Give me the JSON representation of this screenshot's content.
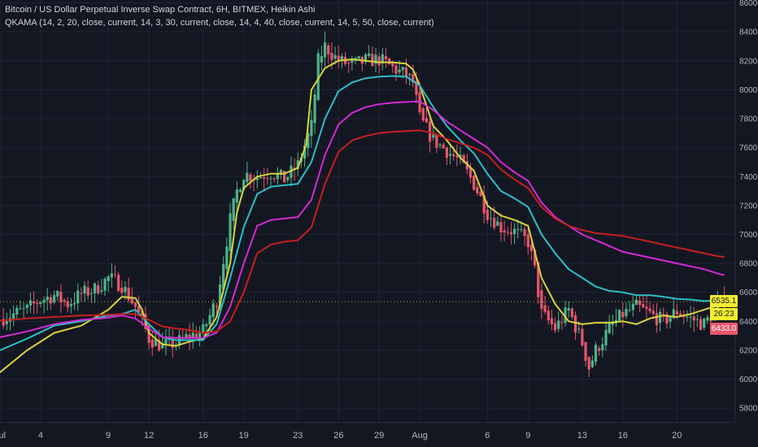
{
  "header": {
    "title": "Bitcoin / US Dollar Perpetual Inverse Swap Contract, 6H, BITMEX, Heikin Ashi",
    "indicator": "QKAMA (14, 2, 20, close, current, 14, 3, 30, current, close, 14, 4, 40, close, current, 14, 5, 50, close, current)"
  },
  "price_tags": {
    "last_price": "6535.1",
    "countdown": "26:23",
    "lowest_marker": "6433.0"
  },
  "colors": {
    "background": "#131722",
    "grid": "#1f2433",
    "axis_text": "#b2b5be",
    "candle_up": "#4fb38a",
    "candle_down": "#e8556b",
    "kama_yellow": "#d8d33a",
    "kama_cyan": "#2bbfc6",
    "kama_magenta": "#d42ad4",
    "kama_red": "#c61f1f",
    "tag_yellow": "#f5ee30",
    "tag_red": "#e8556b"
  },
  "chart_data": {
    "type": "candlestick",
    "y_axis_position": "right",
    "ylim": [
      5700,
      8620
    ],
    "ytick_labels": [
      "8600.0",
      "8400.0",
      "8200.0",
      "8000.0",
      "7800.0",
      "7600.0",
      "7400.0",
      "7200.0",
      "7000.0",
      "6800.0",
      "6600.0",
      "6400.0",
      "6200.0",
      "6000.0",
      "5800.0"
    ],
    "ytick_values": [
      8600,
      8400,
      8200,
      8000,
      7800,
      7600,
      7400,
      7200,
      7000,
      6800,
      6600,
      6400,
      6200,
      6000,
      5800
    ],
    "x_range_days": [
      0,
      54.3
    ],
    "xtick_labels": [
      "Jul",
      "4",
      "9",
      "12",
      "16",
      "19",
      "23",
      "26",
      "29",
      "Aug",
      "6",
      "9",
      "13",
      "16",
      "20"
    ],
    "xtick_days": [
      0,
      3,
      8,
      11,
      15,
      18,
      22,
      25,
      28,
      31,
      36,
      39,
      43,
      46,
      50
    ],
    "grid": true,
    "kama_series": [
      {
        "color_key": "kama_yellow",
        "values": [
          [
            -0.5,
            6010
          ],
          [
            2,
            6200
          ],
          [
            4,
            6320
          ],
          [
            6,
            6370
          ],
          [
            8,
            6480
          ],
          [
            9,
            6570
          ],
          [
            10,
            6560
          ],
          [
            10.5,
            6480
          ],
          [
            11,
            6320
          ],
          [
            12,
            6240
          ],
          [
            13,
            6230
          ],
          [
            14,
            6260
          ],
          [
            15,
            6280
          ],
          [
            16,
            6430
          ],
          [
            17,
            6800
          ],
          [
            17.5,
            7150
          ],
          [
            18,
            7320
          ],
          [
            19,
            7400
          ],
          [
            20,
            7420
          ],
          [
            21,
            7420
          ],
          [
            22,
            7460
          ],
          [
            22.6,
            7620
          ],
          [
            23,
            8000
          ],
          [
            24,
            8150
          ],
          [
            25,
            8200
          ],
          [
            26,
            8210
          ],
          [
            27,
            8200
          ],
          [
            28,
            8190
          ],
          [
            29,
            8190
          ],
          [
            30,
            8180
          ],
          [
            30.5,
            8140
          ],
          [
            31,
            8030
          ],
          [
            32,
            7750
          ],
          [
            33,
            7650
          ],
          [
            34,
            7530
          ],
          [
            35,
            7440
          ],
          [
            36,
            7200
          ],
          [
            37,
            7130
          ],
          [
            38,
            7100
          ],
          [
            39,
            7060
          ],
          [
            40,
            6700
          ],
          [
            41,
            6520
          ],
          [
            42,
            6400
          ],
          [
            43,
            6380
          ],
          [
            44,
            6390
          ],
          [
            45,
            6390
          ],
          [
            46,
            6400
          ],
          [
            47,
            6380
          ],
          [
            48,
            6420
          ],
          [
            49,
            6440
          ],
          [
            50,
            6430
          ],
          [
            51,
            6450
          ],
          [
            52,
            6480
          ],
          [
            53,
            6510
          ],
          [
            53.5,
            6530
          ]
        ]
      },
      {
        "color_key": "kama_cyan",
        "values": [
          [
            -0.5,
            6180
          ],
          [
            2,
            6280
          ],
          [
            4,
            6370
          ],
          [
            6,
            6400
          ],
          [
            8,
            6440
          ],
          [
            9,
            6450
          ],
          [
            10,
            6480
          ],
          [
            11,
            6380
          ],
          [
            12,
            6290
          ],
          [
            13,
            6270
          ],
          [
            14,
            6270
          ],
          [
            15,
            6270
          ],
          [
            16,
            6380
          ],
          [
            17,
            6700
          ],
          [
            18,
            7050
          ],
          [
            19,
            7280
          ],
          [
            20,
            7330
          ],
          [
            21,
            7340
          ],
          [
            22,
            7350
          ],
          [
            23,
            7500
          ],
          [
            24,
            7800
          ],
          [
            25,
            7990
          ],
          [
            26,
            8050
          ],
          [
            27,
            8080
          ],
          [
            28,
            8090
          ],
          [
            29,
            8095
          ],
          [
            30,
            8090
          ],
          [
            31,
            8030
          ],
          [
            32,
            7880
          ],
          [
            33,
            7750
          ],
          [
            34,
            7650
          ],
          [
            35,
            7560
          ],
          [
            36,
            7420
          ],
          [
            37,
            7300
          ],
          [
            38,
            7250
          ],
          [
            39,
            7190
          ],
          [
            40,
            7000
          ],
          [
            41,
            6870
          ],
          [
            42,
            6760
          ],
          [
            43,
            6700
          ],
          [
            44,
            6640
          ],
          [
            45,
            6610
          ],
          [
            46,
            6600
          ],
          [
            47,
            6580
          ],
          [
            48,
            6580
          ],
          [
            49,
            6570
          ],
          [
            50,
            6555
          ],
          [
            51,
            6550
          ],
          [
            52,
            6540
          ],
          [
            53,
            6545
          ],
          [
            53.5,
            6550
          ]
        ]
      },
      {
        "color_key": "kama_magenta",
        "values": [
          [
            -0.5,
            6280
          ],
          [
            2,
            6330
          ],
          [
            4,
            6380
          ],
          [
            6,
            6410
          ],
          [
            8,
            6425
          ],
          [
            9,
            6440
          ],
          [
            10,
            6420
          ],
          [
            11,
            6350
          ],
          [
            12,
            6290
          ],
          [
            13,
            6285
          ],
          [
            14,
            6285
          ],
          [
            15,
            6285
          ],
          [
            16,
            6320
          ],
          [
            17,
            6500
          ],
          [
            18,
            6800
          ],
          [
            19,
            7060
          ],
          [
            20,
            7100
          ],
          [
            21,
            7110
          ],
          [
            22,
            7120
          ],
          [
            23,
            7240
          ],
          [
            24,
            7550
          ],
          [
            25,
            7760
          ],
          [
            26,
            7840
          ],
          [
            27,
            7880
          ],
          [
            28,
            7900
          ],
          [
            29,
            7910
          ],
          [
            30,
            7915
          ],
          [
            31,
            7920
          ],
          [
            32,
            7860
          ],
          [
            33,
            7780
          ],
          [
            34,
            7720
          ],
          [
            35,
            7660
          ],
          [
            36,
            7600
          ],
          [
            37,
            7500
          ],
          [
            38,
            7430
          ],
          [
            39,
            7370
          ],
          [
            40,
            7220
          ],
          [
            41,
            7120
          ],
          [
            42,
            7060
          ],
          [
            43,
            7000
          ],
          [
            44,
            6960
          ],
          [
            45,
            6920
          ],
          [
            46,
            6880
          ],
          [
            47,
            6860
          ],
          [
            48,
            6840
          ],
          [
            49,
            6820
          ],
          [
            50,
            6800
          ],
          [
            51,
            6780
          ],
          [
            52,
            6760
          ],
          [
            53,
            6730
          ],
          [
            53.5,
            6720
          ]
        ]
      },
      {
        "color_key": "kama_red",
        "values": [
          [
            -0.5,
            6400
          ],
          [
            2,
            6420
          ],
          [
            4,
            6430
          ],
          [
            6,
            6440
          ],
          [
            8,
            6445
          ],
          [
            9,
            6450
          ],
          [
            10,
            6450
          ],
          [
            11,
            6410
          ],
          [
            12,
            6365
          ],
          [
            13,
            6350
          ],
          [
            14,
            6340
          ],
          [
            15,
            6320
          ],
          [
            16,
            6330
          ],
          [
            17,
            6400
          ],
          [
            18,
            6600
          ],
          [
            19,
            6870
          ],
          [
            20,
            6930
          ],
          [
            21,
            6950
          ],
          [
            22,
            6960
          ],
          [
            23,
            7050
          ],
          [
            24,
            7350
          ],
          [
            25,
            7570
          ],
          [
            26,
            7650
          ],
          [
            27,
            7680
          ],
          [
            28,
            7700
          ],
          [
            29,
            7710
          ],
          [
            30,
            7715
          ],
          [
            31,
            7720
          ],
          [
            32,
            7700
          ],
          [
            33,
            7660
          ],
          [
            34,
            7630
          ],
          [
            35,
            7600
          ],
          [
            36,
            7550
          ],
          [
            37,
            7450
          ],
          [
            38,
            7380
          ],
          [
            39,
            7320
          ],
          [
            40,
            7190
          ],
          [
            41,
            7110
          ],
          [
            42,
            7060
          ],
          [
            43,
            7030
          ],
          [
            44,
            7010
          ],
          [
            45,
            7000
          ],
          [
            46,
            6990
          ],
          [
            47,
            6970
          ],
          [
            48,
            6950
          ],
          [
            49,
            6930
          ],
          [
            50,
            6910
          ],
          [
            51,
            6890
          ],
          [
            52,
            6870
          ],
          [
            53,
            6850
          ],
          [
            53.5,
            6845
          ]
        ]
      }
    ],
    "price_path": [
      [
        -0.5,
        6400
      ],
      [
        1,
        6450
      ],
      [
        2,
        6480
      ],
      [
        3,
        6550
      ],
      [
        4,
        6580
      ],
      [
        5,
        6520
      ],
      [
        6,
        6590
      ],
      [
        7,
        6620
      ],
      [
        8,
        6700
      ],
      [
        9,
        6650
      ],
      [
        10,
        6500
      ],
      [
        10.5,
        6400
      ],
      [
        11,
        6280
      ],
      [
        12,
        6230
      ],
      [
        13,
        6250
      ],
      [
        14,
        6300
      ],
      [
        15,
        6330
      ],
      [
        16,
        6550
      ],
      [
        17,
        7100
      ],
      [
        17.5,
        7300
      ],
      [
        18,
        7420
      ],
      [
        19,
        7400
      ],
      [
        20,
        7430
      ],
      [
        21,
        7380
      ],
      [
        22,
        7480
      ],
      [
        23,
        7750
      ],
      [
        23.5,
        8200
      ],
      [
        24,
        8300
      ],
      [
        25,
        8200
      ],
      [
        26,
        8170
      ],
      [
        27,
        8200
      ],
      [
        28,
        8210
      ],
      [
        29,
        8150
      ],
      [
        30,
        8100
      ],
      [
        30.5,
        8050
      ],
      [
        31,
        7800
      ],
      [
        32,
        7650
      ],
      [
        33,
        7580
      ],
      [
        34,
        7500
      ],
      [
        35,
        7350
      ],
      [
        36,
        7150
      ],
      [
        37,
        7050
      ],
      [
        38,
        7020
      ],
      [
        39,
        6950
      ],
      [
        39.5,
        6750
      ],
      [
        40,
        6450
      ],
      [
        41,
        6350
      ],
      [
        42,
        6480
      ],
      [
        43,
        6250
      ],
      [
        43.5,
        6080
      ],
      [
        44,
        6200
      ],
      [
        45,
        6350
      ],
      [
        46,
        6450
      ],
      [
        47,
        6500
      ],
      [
        48,
        6450
      ],
      [
        49,
        6400
      ],
      [
        50,
        6470
      ],
      [
        51,
        6420
      ],
      [
        52,
        6380
      ],
      [
        53,
        6500
      ],
      [
        53.5,
        6550
      ]
    ]
  }
}
